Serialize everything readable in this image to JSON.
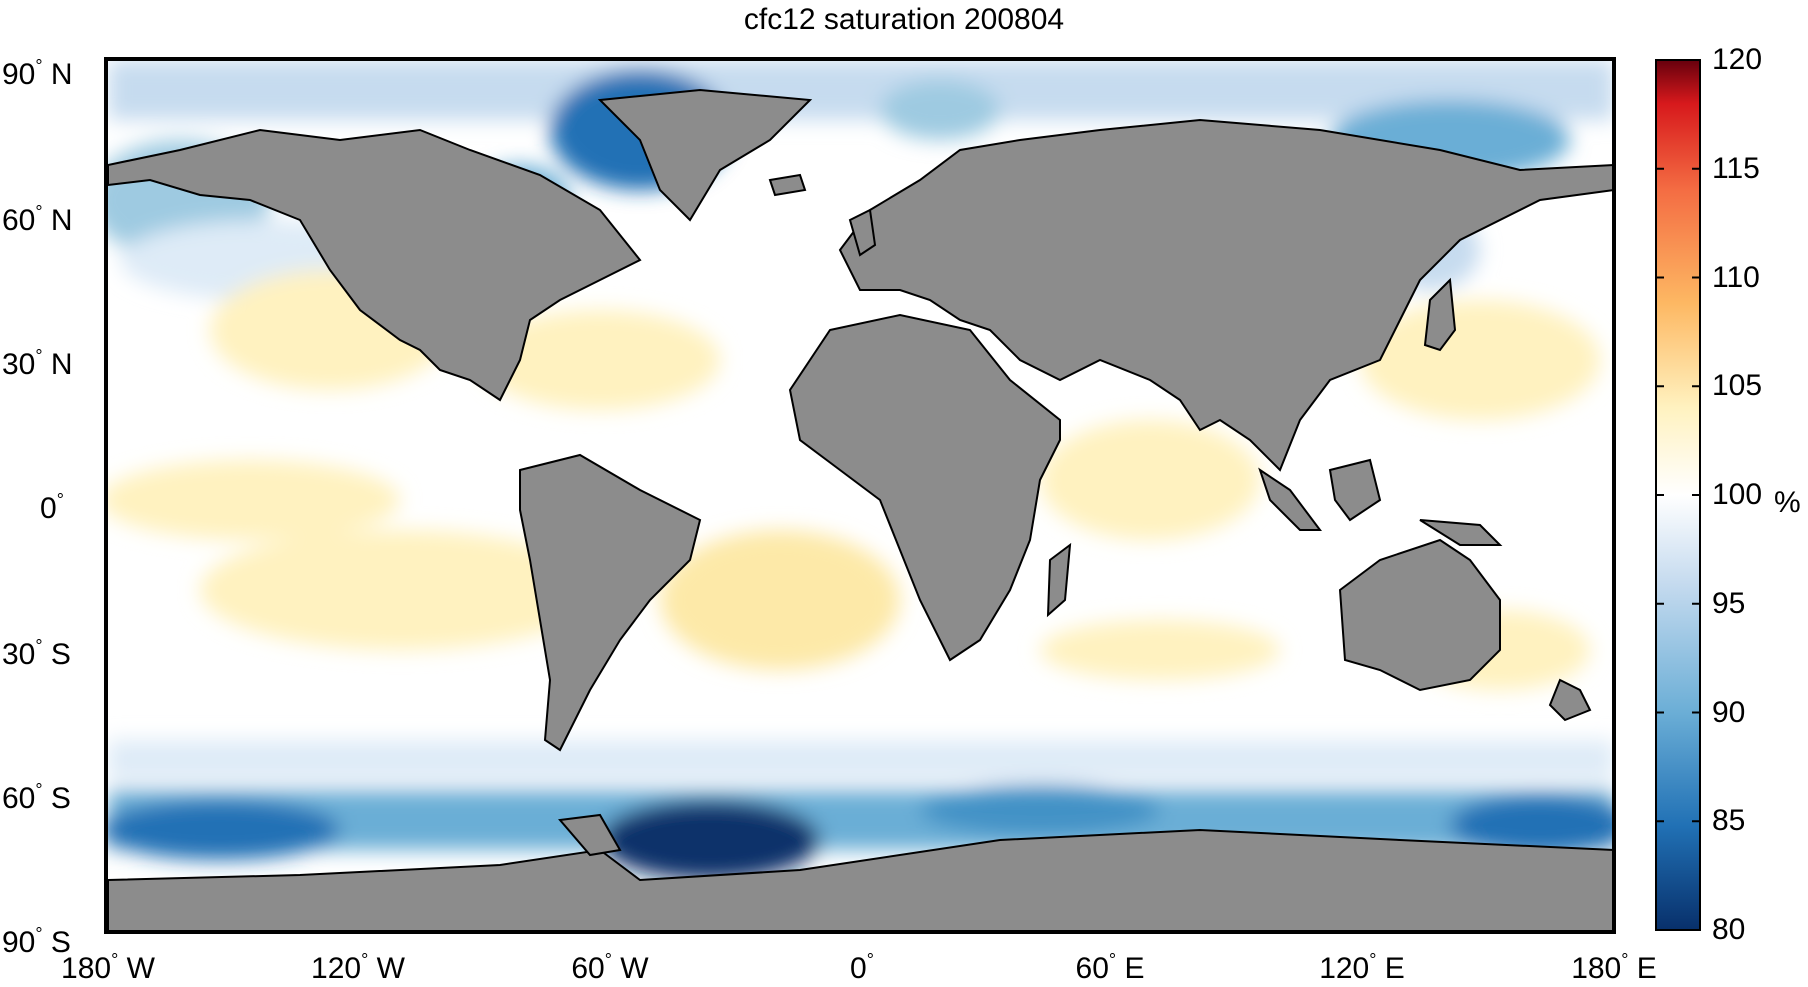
{
  "title": "cfc12 saturation 200804",
  "lat_ticks": [
    {
      "deg": "90",
      "hemi": "N"
    },
    {
      "deg": "60",
      "hemi": "N"
    },
    {
      "deg": "30",
      "hemi": "N"
    },
    {
      "deg": "0",
      "hemi": ""
    },
    {
      "deg": "30",
      "hemi": "S"
    },
    {
      "deg": "60",
      "hemi": "S"
    },
    {
      "deg": "90",
      "hemi": "S"
    }
  ],
  "lon_ticks": [
    {
      "deg": "180",
      "hemi": "W"
    },
    {
      "deg": "120",
      "hemi": "W"
    },
    {
      "deg": "60",
      "hemi": "W"
    },
    {
      "deg": "0",
      "hemi": ""
    },
    {
      "deg": "60",
      "hemi": "E"
    },
    {
      "deg": "120",
      "hemi": "E"
    },
    {
      "deg": "180",
      "hemi": "E"
    }
  ],
  "colorbar": {
    "unit": "%",
    "min": 80,
    "max": 120,
    "ticks": [
      "120",
      "115",
      "110",
      "105",
      "100",
      "95",
      "90",
      "85",
      "80"
    ]
  },
  "colors": {
    "land": "#8c8c8c",
    "ocean_neutral": "#ffffff",
    "low_deep": "#08306b",
    "high_deep": "#67000d"
  }
}
